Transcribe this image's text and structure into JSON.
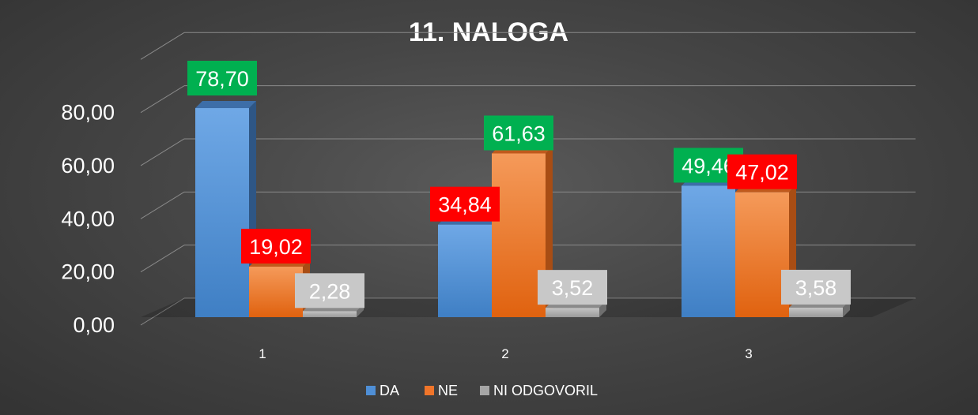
{
  "chart_data": {
    "type": "bar",
    "title": "11. NALOGA",
    "categories": [
      "1",
      "2",
      "3"
    ],
    "series": [
      {
        "name": "DA",
        "values": [
          78.7,
          34.84,
          49.46
        ],
        "color": "#4f8fd6",
        "label_bg": [
          "#00b050",
          "#ff0000",
          "#00b050"
        ],
        "labels": [
          "78,70",
          "34,84",
          "49,46"
        ]
      },
      {
        "name": "NE",
        "values": [
          19.02,
          61.63,
          47.02
        ],
        "color": "#f0752a",
        "label_bg": [
          "#ff0000",
          "#00b050",
          "#ff0000"
        ],
        "labels": [
          "19,02",
          "61,63",
          "47,02"
        ]
      },
      {
        "name": "NI ODGOVORIL",
        "values": [
          2.28,
          3.52,
          3.58
        ],
        "color": "#a6a6a6",
        "label_bg": [
          "#c8c8c8",
          "#c8c8c8",
          "#c8c8c8"
        ],
        "labels": [
          "2,28",
          "3,52",
          "3,58"
        ]
      }
    ],
    "yticks": [
      "0,00",
      "20,00",
      "40,00",
      "60,00",
      "80,00"
    ],
    "ylim": [
      0,
      100
    ],
    "grid": true,
    "legend_position": "bottom",
    "style": "3d-clustered-column"
  }
}
